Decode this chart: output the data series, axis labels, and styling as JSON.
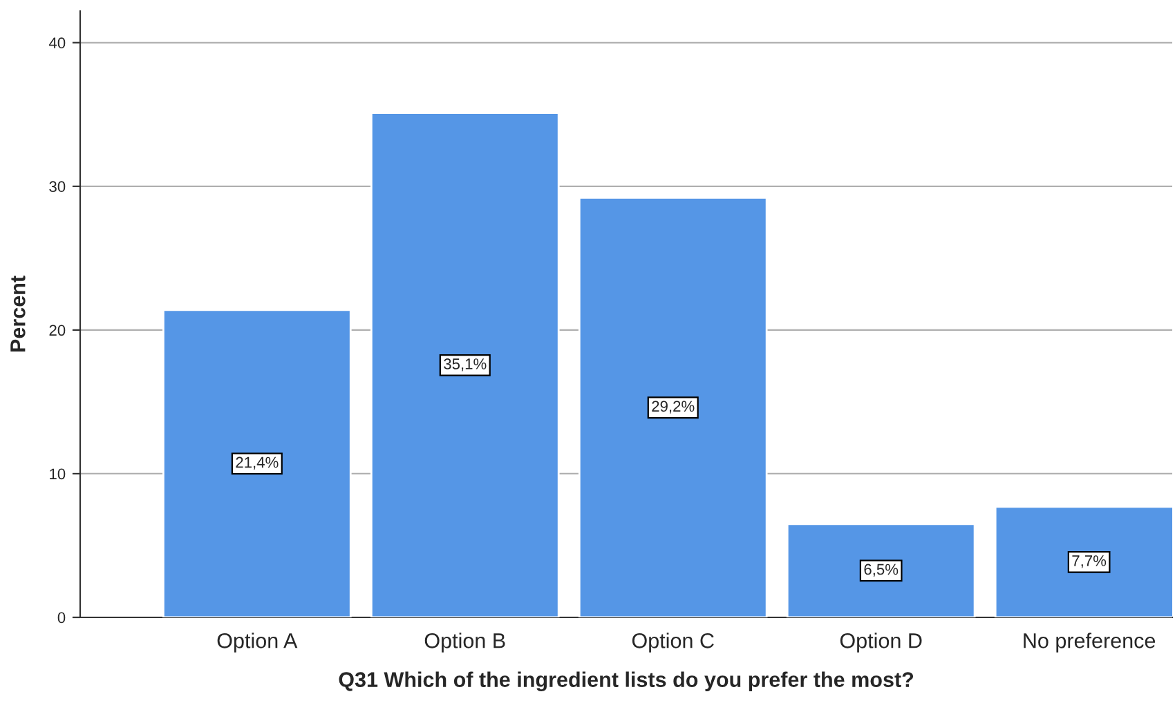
{
  "chart_data": {
    "type": "bar",
    "xlabel": "Q31 Which of the ingredient lists do you prefer the most?",
    "ylabel": "Percent",
    "categories": [
      "Option A",
      "Option B",
      "Option C",
      "Option D",
      "No preference"
    ],
    "values": [
      21.4,
      35.1,
      29.2,
      6.5,
      7.7
    ],
    "value_labels": [
      "21,4%",
      "35,1%",
      "29,2%",
      "6,5%",
      "7,7%"
    ],
    "color": "#5596e6",
    "ylim": [
      0,
      42.2
    ],
    "yticks": [
      0,
      10,
      20,
      30,
      40
    ],
    "grid": "y"
  }
}
